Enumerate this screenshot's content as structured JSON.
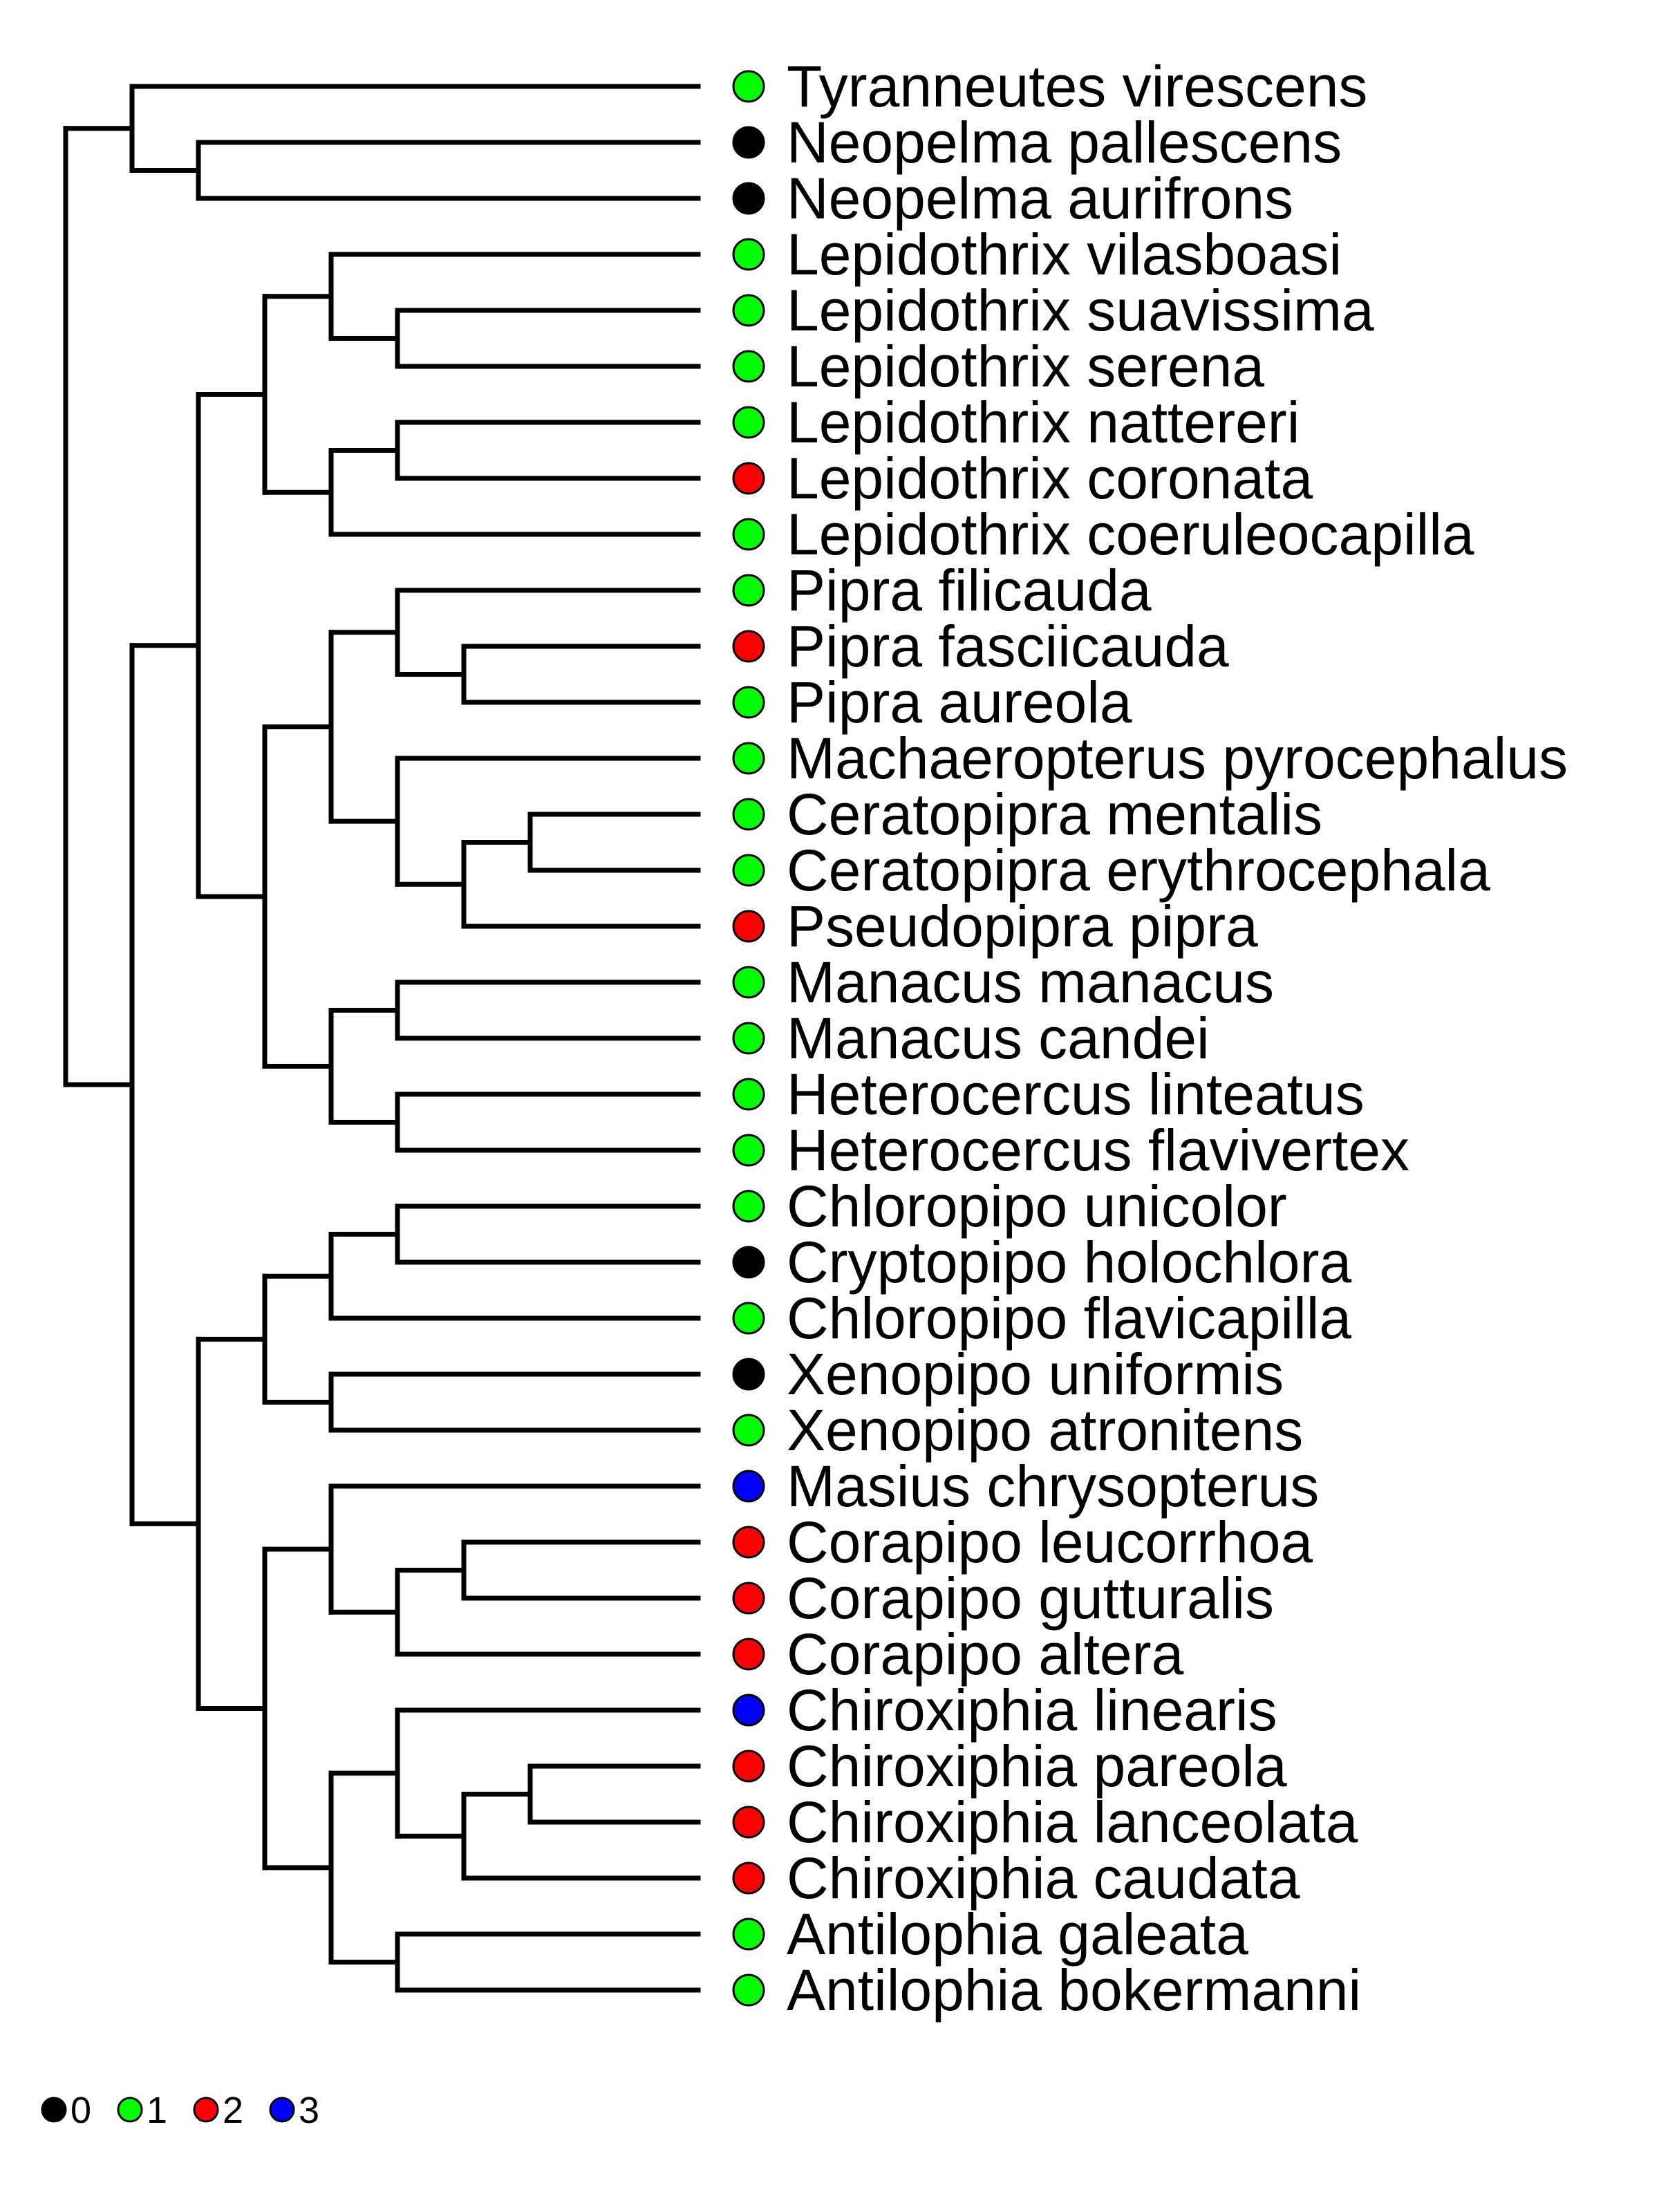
{
  "tree": {
    "children": [
      {
        "children": [
          {
            "tip": "Tyranneutes virescens",
            "state": "1"
          },
          {
            "children": [
              {
                "tip": "Neopelma pallescens",
                "state": "0"
              },
              {
                "tip": "Neopelma aurifrons",
                "state": "0"
              }
            ]
          }
        ]
      },
      {
        "children": [
          {
            "children": [
              {
                "children": [
                  {
                    "children": [
                      {
                        "tip": "Lepidothrix vilasboasi",
                        "state": "1"
                      },
                      {
                        "children": [
                          {
                            "tip": "Lepidothrix suavissima",
                            "state": "1"
                          },
                          {
                            "tip": "Lepidothrix serena",
                            "state": "1"
                          }
                        ]
                      }
                    ]
                  },
                  {
                    "children": [
                      {
                        "children": [
                          {
                            "tip": "Lepidothrix nattereri",
                            "state": "1"
                          },
                          {
                            "tip": "Lepidothrix coronata",
                            "state": "2"
                          }
                        ]
                      },
                      {
                        "tip": "Lepidothrix coeruleocapilla",
                        "state": "1"
                      }
                    ]
                  }
                ]
              },
              {
                "children": [
                  {
                    "children": [
                      {
                        "children": [
                          {
                            "tip": "Pipra filicauda",
                            "state": "1"
                          },
                          {
                            "children": [
                              {
                                "tip": "Pipra fasciicauda",
                                "state": "2"
                              },
                              {
                                "tip": "Pipra aureola",
                                "state": "1"
                              }
                            ]
                          }
                        ]
                      },
                      {
                        "children": [
                          {
                            "tip": "Machaeropterus pyrocephalus",
                            "state": "1"
                          },
                          {
                            "children": [
                              {
                                "children": [
                                  {
                                    "tip": "Ceratopipra mentalis",
                                    "state": "1"
                                  },
                                  {
                                    "tip": "Ceratopipra erythrocephala",
                                    "state": "1"
                                  }
                                ]
                              },
                              {
                                "tip": "Pseudopipra pipra",
                                "state": "2"
                              }
                            ]
                          }
                        ]
                      }
                    ]
                  },
                  {
                    "children": [
                      {
                        "children": [
                          {
                            "tip": "Manacus manacus",
                            "state": "1"
                          },
                          {
                            "tip": "Manacus candei",
                            "state": "1"
                          }
                        ]
                      },
                      {
                        "children": [
                          {
                            "tip": "Heterocercus linteatus",
                            "state": "1"
                          },
                          {
                            "tip": "Heterocercus flavivertex",
                            "state": "1"
                          }
                        ]
                      }
                    ]
                  }
                ]
              }
            ]
          },
          {
            "children": [
              {
                "children": [
                  {
                    "children": [
                      {
                        "children": [
                          {
                            "tip": "Chloropipo unicolor",
                            "state": "1"
                          },
                          {
                            "tip": "Cryptopipo holochlora",
                            "state": "0"
                          }
                        ]
                      },
                      {
                        "tip": "Chloropipo flavicapilla",
                        "state": "1"
                      }
                    ]
                  },
                  {
                    "children": [
                      {
                        "tip": "Xenopipo uniformis",
                        "state": "0"
                      },
                      {
                        "tip": "Xenopipo atronitens",
                        "state": "1"
                      }
                    ]
                  }
                ]
              },
              {
                "children": [
                  {
                    "children": [
                      {
                        "tip": "Masius chrysopterus",
                        "state": "3"
                      },
                      {
                        "children": [
                          {
                            "children": [
                              {
                                "tip": "Corapipo leucorrhoa",
                                "state": "2"
                              },
                              {
                                "tip": "Corapipo gutturalis",
                                "state": "2"
                              }
                            ]
                          },
                          {
                            "tip": "Corapipo altera",
                            "state": "2"
                          }
                        ]
                      }
                    ]
                  },
                  {
                    "children": [
                      {
                        "children": [
                          {
                            "tip": "Chiroxiphia linearis",
                            "state": "3"
                          },
                          {
                            "children": [
                              {
                                "children": [
                                  {
                                    "tip": "Chiroxiphia pareola",
                                    "state": "2"
                                  },
                                  {
                                    "tip": "Chiroxiphia lanceolata",
                                    "state": "2"
                                  }
                                ]
                              },
                              {
                                "tip": "Chiroxiphia caudata",
                                "state": "2"
                              }
                            ]
                          }
                        ]
                      },
                      {
                        "children": [
                          {
                            "tip": "Antilophia galeata",
                            "state": "1"
                          },
                          {
                            "tip": "Antilophia bokermanni",
                            "state": "1"
                          }
                        ]
                      }
                    ]
                  }
                ]
              }
            ]
          }
        ]
      }
    ]
  },
  "legend": [
    {
      "state": "0",
      "label": "0"
    },
    {
      "state": "1",
      "label": "1"
    },
    {
      "state": "2",
      "label": "2"
    },
    {
      "state": "3",
      "label": "3"
    }
  ],
  "state_colors": {
    "0": "#000000",
    "1": "#00ff00",
    "2": "#ff0000",
    "3": "#0000ff"
  }
}
